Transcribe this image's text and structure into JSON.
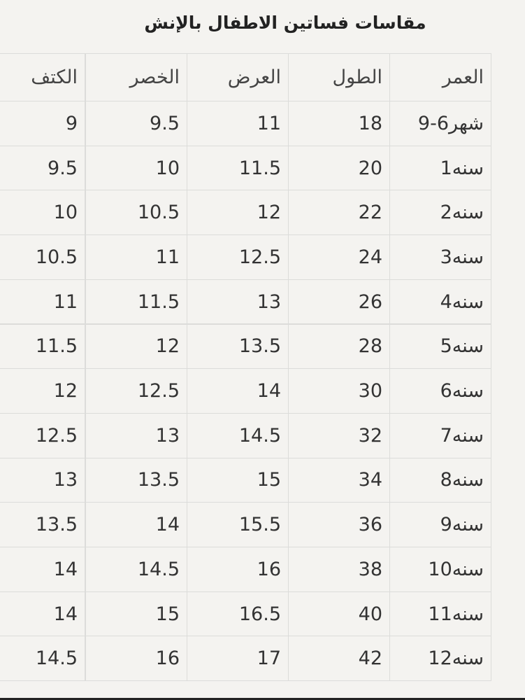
{
  "title": "مقاسات فساتين الاطفال بالإنش",
  "table": {
    "header": [
      "العمر",
      "الطول",
      "العرض",
      "الخصر",
      "الكتف"
    ],
    "rows": [
      [
        "9-6شهر",
        "18",
        "11",
        "9.5",
        "9"
      ],
      [
        "1سنه",
        "20",
        "11.5",
        "10",
        "9.5"
      ],
      [
        "2سنه",
        "22",
        "12",
        "10.5",
        "10"
      ],
      [
        "3سنه",
        "24",
        "12.5",
        "11",
        "10.5"
      ],
      [
        "4سنه",
        "26",
        "13",
        "11.5",
        "11"
      ],
      [
        "5سنه",
        "28",
        "13.5",
        "12",
        "11.5"
      ],
      [
        "6سنه",
        "30",
        "14",
        "12.5",
        "12"
      ],
      [
        "7سنه",
        "32",
        "14.5",
        "13",
        "12.5"
      ],
      [
        "8سنه",
        "34",
        "15",
        "13.5",
        "13"
      ],
      [
        "9سنه",
        "36",
        "15.5",
        "14",
        "13.5"
      ],
      [
        "10سنه",
        "38",
        "16",
        "14.5",
        "14"
      ],
      [
        "11سنه",
        "40",
        "16.5",
        "15",
        "14"
      ],
      [
        "12سنه",
        "42",
        "17",
        "16",
        "14.5"
      ]
    ]
  }
}
